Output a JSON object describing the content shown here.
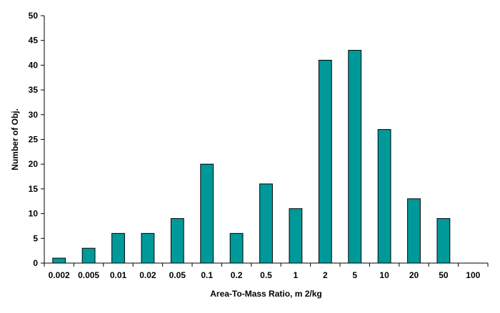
{
  "chart_data": {
    "type": "bar",
    "title": "",
    "xlabel": "Area-To-Mass Ratio, m 2/kg",
    "ylabel": "Number of Obj.",
    "categories": [
      "0.002",
      "0.005",
      "0.01",
      "0.02",
      "0.05",
      "0.1",
      "0.2",
      "0.5",
      "1",
      "2",
      "5",
      "10",
      "20",
      "50",
      "100"
    ],
    "series": [
      {
        "values": [
          1,
          3,
          6,
          6,
          9,
          20,
          6,
          16,
          11,
          41,
          43,
          27,
          13,
          9,
          0
        ]
      }
    ],
    "ylim": [
      0,
      50
    ],
    "yticks": [
      0,
      5,
      10,
      15,
      20,
      25,
      30,
      35,
      40,
      45,
      50
    ],
    "grid": false,
    "legend": "none",
    "bar_color": "#009999"
  }
}
